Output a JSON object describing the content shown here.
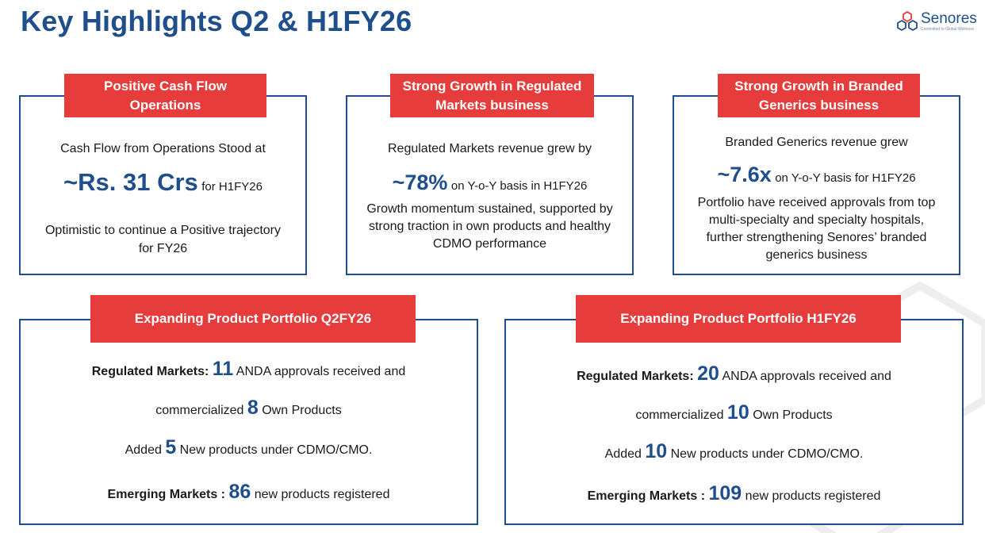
{
  "page": {
    "title": "Key Highlights Q2 & H1FY26",
    "logo_name": "Senores",
    "logo_tagline": "Committed to Global Wellness"
  },
  "cards": {
    "cash": {
      "banner_line1": "Positive Cash Flow",
      "banner_line2": "Operations",
      "line1": "Cash Flow from Operations Stood at",
      "value": "~Rs. 31 Crs",
      "value_suffix": "for H1FY26",
      "line3": "Optimistic to continue a Positive trajectory",
      "line4": "for FY26"
    },
    "regulated": {
      "banner_line1": "Strong Growth in Regulated",
      "banner_line2": "Markets business",
      "line1": "Regulated Markets revenue grew by",
      "value": "~78%",
      "value_suffix": "on Y-o-Y basis in H1FY26",
      "line3": "Growth momentum sustained, supported by",
      "line4": "strong traction in own products and healthy",
      "line5": "CDMO performance"
    },
    "branded": {
      "banner_line1": "Strong Growth in Branded",
      "banner_line2": "Generics business",
      "line1": "Branded Generics revenue grew",
      "value": "~7.6x",
      "value_suffix": "on Y-o-Y basis for H1FY26",
      "line3": "Portfolio have received approvals from top",
      "line4": "multi-specialty and specialty hospitals,",
      "line5": "further strengthening Senores’ branded",
      "line6": "generics business"
    }
  },
  "portfolio_q2": {
    "banner": "Expanding Product Portfolio Q2FY26",
    "reg_label": "Regulated Markets:",
    "reg_value": "11",
    "reg_text": "ANDA approvals received and",
    "comm_prefix": "commercialized",
    "comm_value": "8",
    "comm_suffix": "Own Products",
    "added_prefix": "Added",
    "added_value": "5",
    "added_suffix": "New products under CDMO/CMO.",
    "em_label": "Emerging Markets :",
    "em_value": "86",
    "em_suffix": "new products registered"
  },
  "portfolio_h1": {
    "banner": "Expanding Product Portfolio H1FY26",
    "reg_label": "Regulated Markets:",
    "reg_value": "20",
    "reg_text": "ANDA approvals received and",
    "comm_prefix": "commercialized",
    "comm_value": "10",
    "comm_suffix": "Own Products",
    "added_prefix": "Added",
    "added_value": "10",
    "added_suffix": "New products under CDMO/CMO.",
    "em_label": "Emerging Markets :",
    "em_value": "109",
    "em_suffix": "new products registered"
  }
}
